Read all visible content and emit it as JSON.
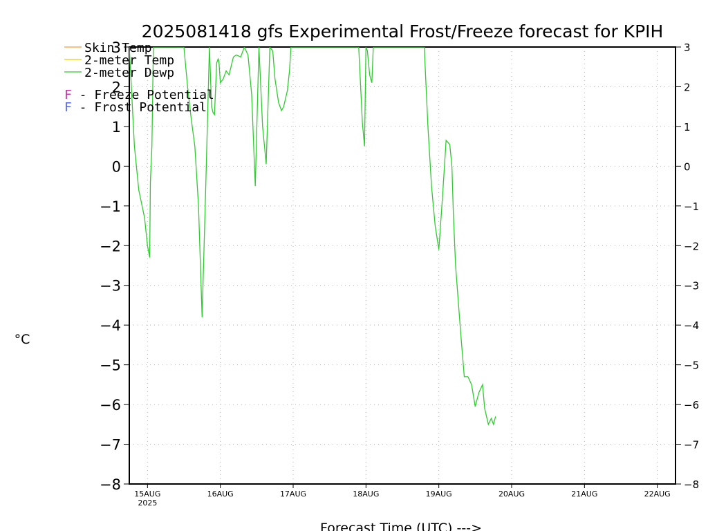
{
  "chart_data": {
    "type": "line",
    "title": "2025081418 gfs Experimental Frost/Freeze forecast for KPIH",
    "xlabel": "Forecast Time (UTC) --->",
    "ylabel": "°C",
    "ylim": [
      -8,
      3
    ],
    "yticks": [
      3,
      2,
      1,
      0,
      -1,
      -2,
      -3,
      -4,
      -5,
      -6,
      -7,
      -8
    ],
    "ytick_labels": [
      "3",
      "2",
      "1",
      "0",
      "−1",
      "−2",
      "−3",
      "−4",
      "−5",
      "−6",
      "−7",
      "−8"
    ],
    "xlim": [
      -0.25,
      7.25
    ],
    "xticks": [
      {
        "x": 0,
        "label": "15AUG",
        "sublabel": "2025"
      },
      {
        "x": 1,
        "label": "16AUG",
        "sublabel": ""
      },
      {
        "x": 2,
        "label": "17AUG",
        "sublabel": ""
      },
      {
        "x": 3,
        "label": "18AUG",
        "sublabel": ""
      },
      {
        "x": 4,
        "label": "19AUG",
        "sublabel": ""
      },
      {
        "x": 5,
        "label": "20AUG",
        "sublabel": ""
      },
      {
        "x": 6,
        "label": "21AUG",
        "sublabel": ""
      },
      {
        "x": 7,
        "label": "22AUG",
        "sublabel": ""
      }
    ],
    "grid": true,
    "legend": {
      "position": "top-left",
      "entries": [
        {
          "label": "Skin Temp",
          "color": "#ff9933"
        },
        {
          "label": "2-meter Temp",
          "color": "#e6d200"
        },
        {
          "label": "2-meter Dewp",
          "color": "#2ecc2e"
        }
      ],
      "notes": [
        {
          "marker": "F",
          "text": " - Freeze Potential",
          "color": "#cc33aa"
        },
        {
          "marker": "F",
          "text": " - Frost Potential",
          "color": "#5566ee"
        }
      ]
    },
    "series": [
      {
        "name": "2-meter Dewp",
        "color": "#2ecc2e",
        "x": [
          -0.25,
          -0.18,
          -0.12,
          -0.04,
          0.0,
          0.03,
          0.04,
          0.06,
          0.08,
          0.5,
          0.55,
          0.6,
          0.65,
          0.7,
          0.75,
          0.8,
          0.85,
          0.88,
          0.9,
          0.92,
          0.95,
          0.97,
          0.98,
          1.0,
          1.04,
          1.08,
          1.12,
          1.18,
          1.22,
          1.28,
          1.33,
          1.38,
          1.43,
          1.48,
          1.53,
          1.58,
          1.63,
          1.68,
          1.72,
          1.75,
          1.8,
          1.84,
          1.87,
          1.92,
          1.95,
          1.97,
          2.0,
          2.05,
          2.07,
          2.1,
          2.13,
          2.17,
          2.22,
          2.25,
          2.3,
          2.35,
          2.38,
          2.45,
          2.9,
          2.95,
          2.98,
          3.0,
          3.02,
          3.05,
          3.08,
          3.1,
          3.12,
          3.15,
          3.2,
          3.8,
          3.85,
          3.9,
          3.95,
          4.0,
          4.05,
          4.1,
          4.15,
          4.18,
          4.2,
          4.23,
          4.3,
          4.35,
          4.4,
          4.45,
          4.5,
          4.55,
          4.6,
          4.63,
          4.68,
          4.72,
          4.75,
          4.78
        ],
        "y": [
          3.0,
          0.5,
          -0.6,
          -1.3,
          -2.0,
          -2.3,
          -0.4,
          0.5,
          3.0,
          3.0,
          2.0,
          1.2,
          0.5,
          -1.0,
          -3.8,
          -0.5,
          3.0,
          1.5,
          1.35,
          1.3,
          2.6,
          2.7,
          2.65,
          2.1,
          2.2,
          2.4,
          2.3,
          2.75,
          2.8,
          2.75,
          3.0,
          2.8,
          1.8,
          -0.5,
          3.0,
          1.0,
          0.05,
          3.0,
          2.9,
          2.2,
          1.6,
          1.4,
          1.5,
          1.9,
          2.4,
          3.0,
          3.0,
          3.0,
          3.0,
          3.0,
          3.0,
          3.0,
          3.0,
          3.0,
          3.0,
          3.0,
          3.0,
          3.0,
          3.0,
          1.1,
          0.5,
          3.0,
          2.9,
          2.3,
          2.1,
          3.0,
          3.0,
          3.0,
          3.0,
          3.0,
          1.0,
          -0.5,
          -1.5,
          -2.1,
          -0.8,
          0.65,
          0.55,
          0.0,
          -1.2,
          -2.5,
          -4.2,
          -5.3,
          -5.3,
          -5.5,
          -6.05,
          -5.7,
          -5.5,
          -6.1,
          -6.5,
          -6.35,
          -6.5,
          -6.3
        ]
      }
    ]
  }
}
